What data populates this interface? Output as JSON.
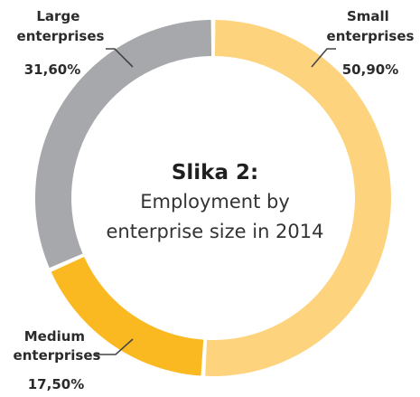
{
  "chart_data": {
    "type": "pie",
    "variant": "donut",
    "title": "Slika 2:",
    "subtitle_lines": [
      "Employment by",
      "enterprise size in 2014"
    ],
    "slices": [
      {
        "label_lines": [
          "Small",
          "enterprises"
        ],
        "value_label": "50,90%",
        "value": 50.9,
        "color": "#fdd37e"
      },
      {
        "label_lines": [
          "Medium",
          "enterprises"
        ],
        "value_label": "17,50%",
        "value": 17.5,
        "color": "#fbb921"
      },
      {
        "label_lines": [
          "Large",
          "enterprises"
        ],
        "value_label": "31,60%",
        "value": 31.6,
        "color": "#a7a8ab"
      }
    ]
  }
}
